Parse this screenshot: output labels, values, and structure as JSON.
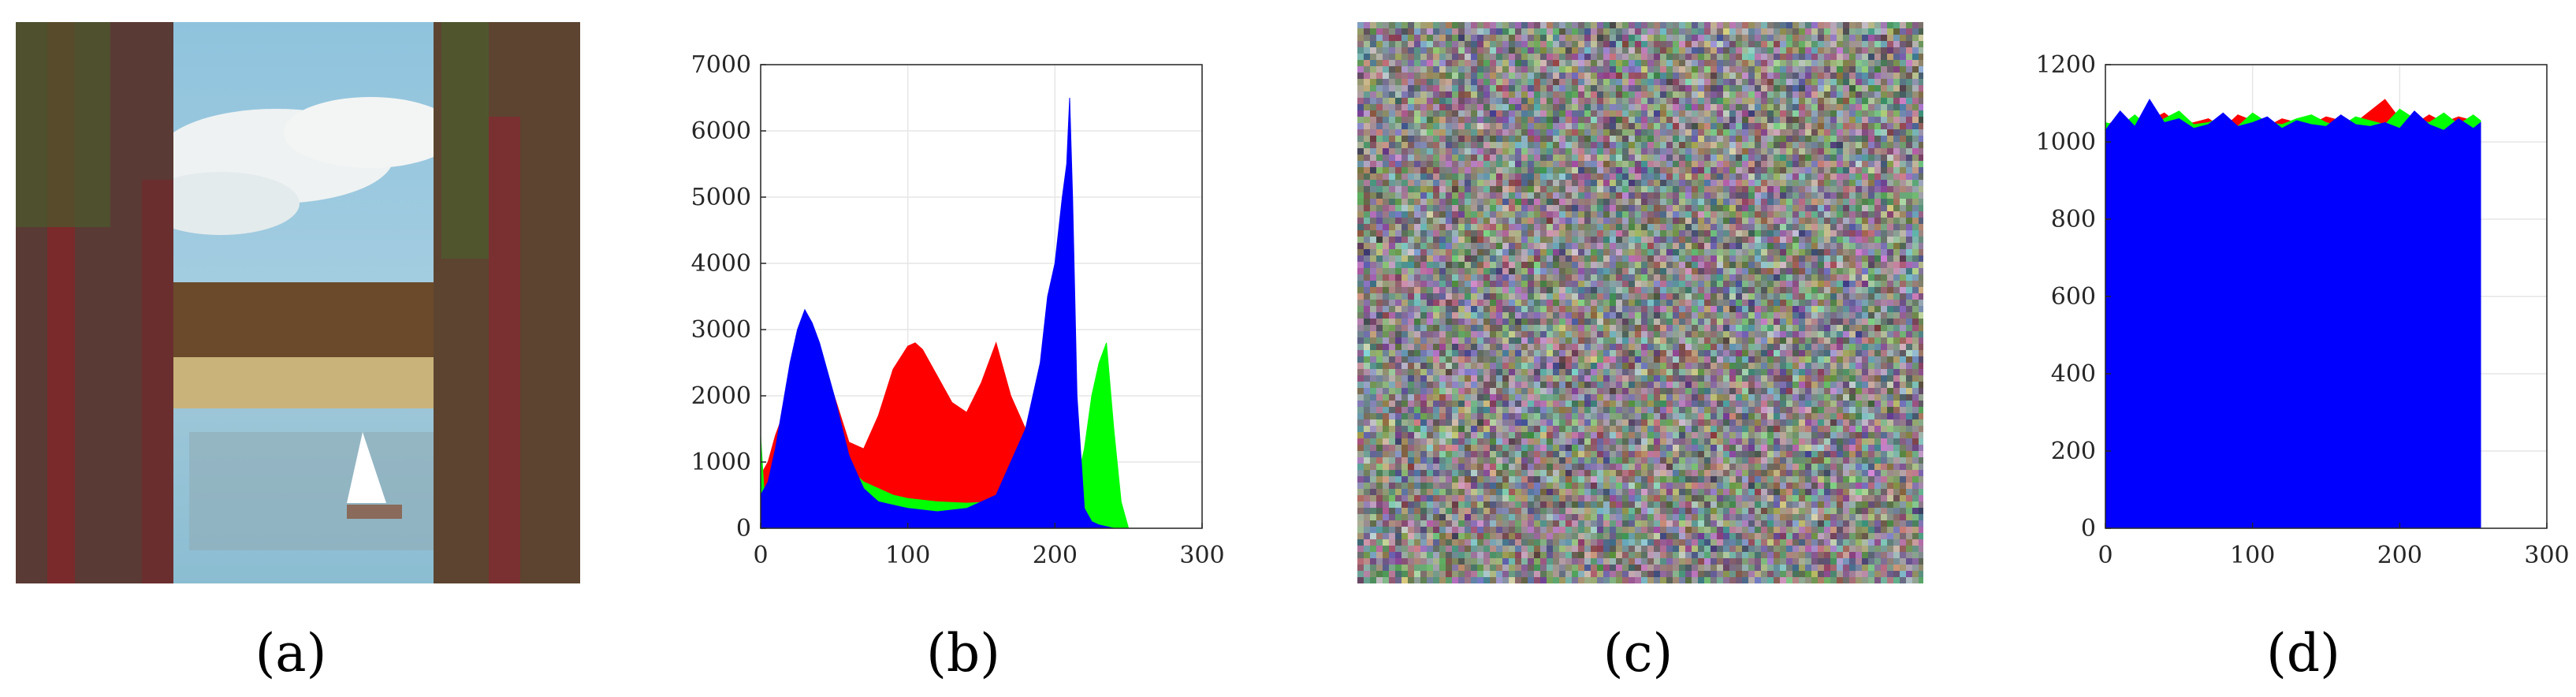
{
  "captions": {
    "a": "(a)",
    "b": "(b)",
    "c": "(c)",
    "d": "(d)"
  },
  "colors": {
    "red": "#ff0000",
    "green": "#00ff00",
    "blue": "#0000ff",
    "grid": "#e6e6e6"
  },
  "chart_data": [
    {
      "panel": "b",
      "type": "area",
      "title": "",
      "xlabel": "",
      "ylabel": "",
      "xlim": [
        0,
        300
      ],
      "ylim": [
        0,
        7000
      ],
      "xticks": [
        0,
        100,
        200,
        300
      ],
      "yticks": [
        0,
        1000,
        2000,
        3000,
        4000,
        5000,
        6000,
        7000
      ],
      "grid": true,
      "series": [
        {
          "color": "#ff0000",
          "x": [
            0,
            5,
            10,
            20,
            30,
            40,
            50,
            60,
            70,
            80,
            90,
            100,
            105,
            110,
            120,
            130,
            140,
            150,
            160,
            170,
            180,
            190,
            200,
            205,
            210,
            215,
            220,
            230,
            240,
            250,
            255
          ],
          "values": [
            800,
            1000,
            1400,
            2000,
            2400,
            2500,
            2000,
            1300,
            1200,
            1700,
            2400,
            2750,
            2800,
            2700,
            2300,
            1900,
            1750,
            2200,
            2800,
            2000,
            1500,
            1300,
            1200,
            900,
            500,
            300,
            200,
            100,
            50,
            0,
            0
          ]
        },
        {
          "color": "#00ff00",
          "x": [
            0,
            3,
            10,
            20,
            30,
            40,
            50,
            60,
            70,
            80,
            90,
            100,
            120,
            140,
            160,
            180,
            190,
            195,
            200,
            205,
            210,
            215,
            220,
            225,
            230,
            235,
            240,
            245,
            250,
            255
          ],
          "values": [
            1400,
            300,
            1000,
            2200,
            3000,
            2600,
            1500,
            900,
            700,
            600,
            500,
            450,
            400,
            380,
            400,
            700,
            1500,
            2500,
            3000,
            2000,
            1000,
            700,
            1200,
            2000,
            2500,
            2800,
            1500,
            400,
            0,
            0
          ]
        },
        {
          "color": "#0000ff",
          "x": [
            0,
            5,
            10,
            20,
            25,
            30,
            35,
            40,
            50,
            60,
            70,
            80,
            100,
            120,
            140,
            160,
            180,
            190,
            195,
            200,
            205,
            208,
            210,
            212,
            215,
            220,
            225,
            230,
            240,
            255
          ],
          "values": [
            500,
            700,
            1200,
            2500,
            3000,
            3300,
            3100,
            2800,
            2000,
            1100,
            600,
            400,
            300,
            250,
            300,
            500,
            1500,
            2500,
            3500,
            4000,
            5000,
            5500,
            6500,
            5000,
            2000,
            300,
            100,
            50,
            0,
            0
          ]
        }
      ]
    },
    {
      "panel": "d",
      "type": "area",
      "title": "",
      "xlabel": "",
      "ylabel": "",
      "xlim": [
        0,
        300
      ],
      "ylim": [
        0,
        1200
      ],
      "xticks": [
        0,
        100,
        200,
        300
      ],
      "yticks": [
        0,
        200,
        400,
        600,
        800,
        1000,
        1200
      ],
      "grid": true,
      "series": [
        {
          "color": "#ff0000",
          "x": [
            0,
            10,
            20,
            30,
            40,
            50,
            60,
            70,
            80,
            90,
            100,
            110,
            120,
            130,
            140,
            150,
            160,
            170,
            180,
            190,
            200,
            210,
            220,
            230,
            240,
            250,
            255
          ],
          "values": [
            1040,
            1065,
            1030,
            1055,
            1075,
            1045,
            1050,
            1060,
            1035,
            1070,
            1055,
            1040,
            1060,
            1050,
            1045,
            1065,
            1055,
            1050,
            1080,
            1110,
            1060,
            1045,
            1070,
            1050,
            1065,
            1055,
            1040
          ]
        },
        {
          "color": "#00ff00",
          "x": [
            0,
            10,
            20,
            30,
            40,
            50,
            60,
            70,
            80,
            90,
            100,
            110,
            120,
            130,
            140,
            150,
            160,
            170,
            180,
            190,
            200,
            210,
            220,
            230,
            240,
            250,
            255
          ],
          "values": [
            1050,
            1040,
            1070,
            1035,
            1060,
            1080,
            1045,
            1050,
            1065,
            1040,
            1075,
            1050,
            1045,
            1060,
            1070,
            1050,
            1040,
            1065,
            1055,
            1045,
            1085,
            1060,
            1050,
            1075,
            1045,
            1070,
            1055
          ]
        },
        {
          "color": "#0000ff",
          "x": [
            0,
            10,
            20,
            30,
            40,
            50,
            60,
            70,
            80,
            90,
            100,
            110,
            120,
            130,
            140,
            150,
            160,
            170,
            180,
            190,
            200,
            210,
            220,
            230,
            240,
            250,
            255
          ],
          "values": [
            1030,
            1080,
            1040,
            1110,
            1050,
            1060,
            1035,
            1045,
            1075,
            1040,
            1050,
            1065,
            1035,
            1055,
            1045,
            1040,
            1070,
            1045,
            1040,
            1050,
            1035,
            1080,
            1045,
            1030,
            1060,
            1035,
            1050
          ]
        }
      ]
    }
  ]
}
